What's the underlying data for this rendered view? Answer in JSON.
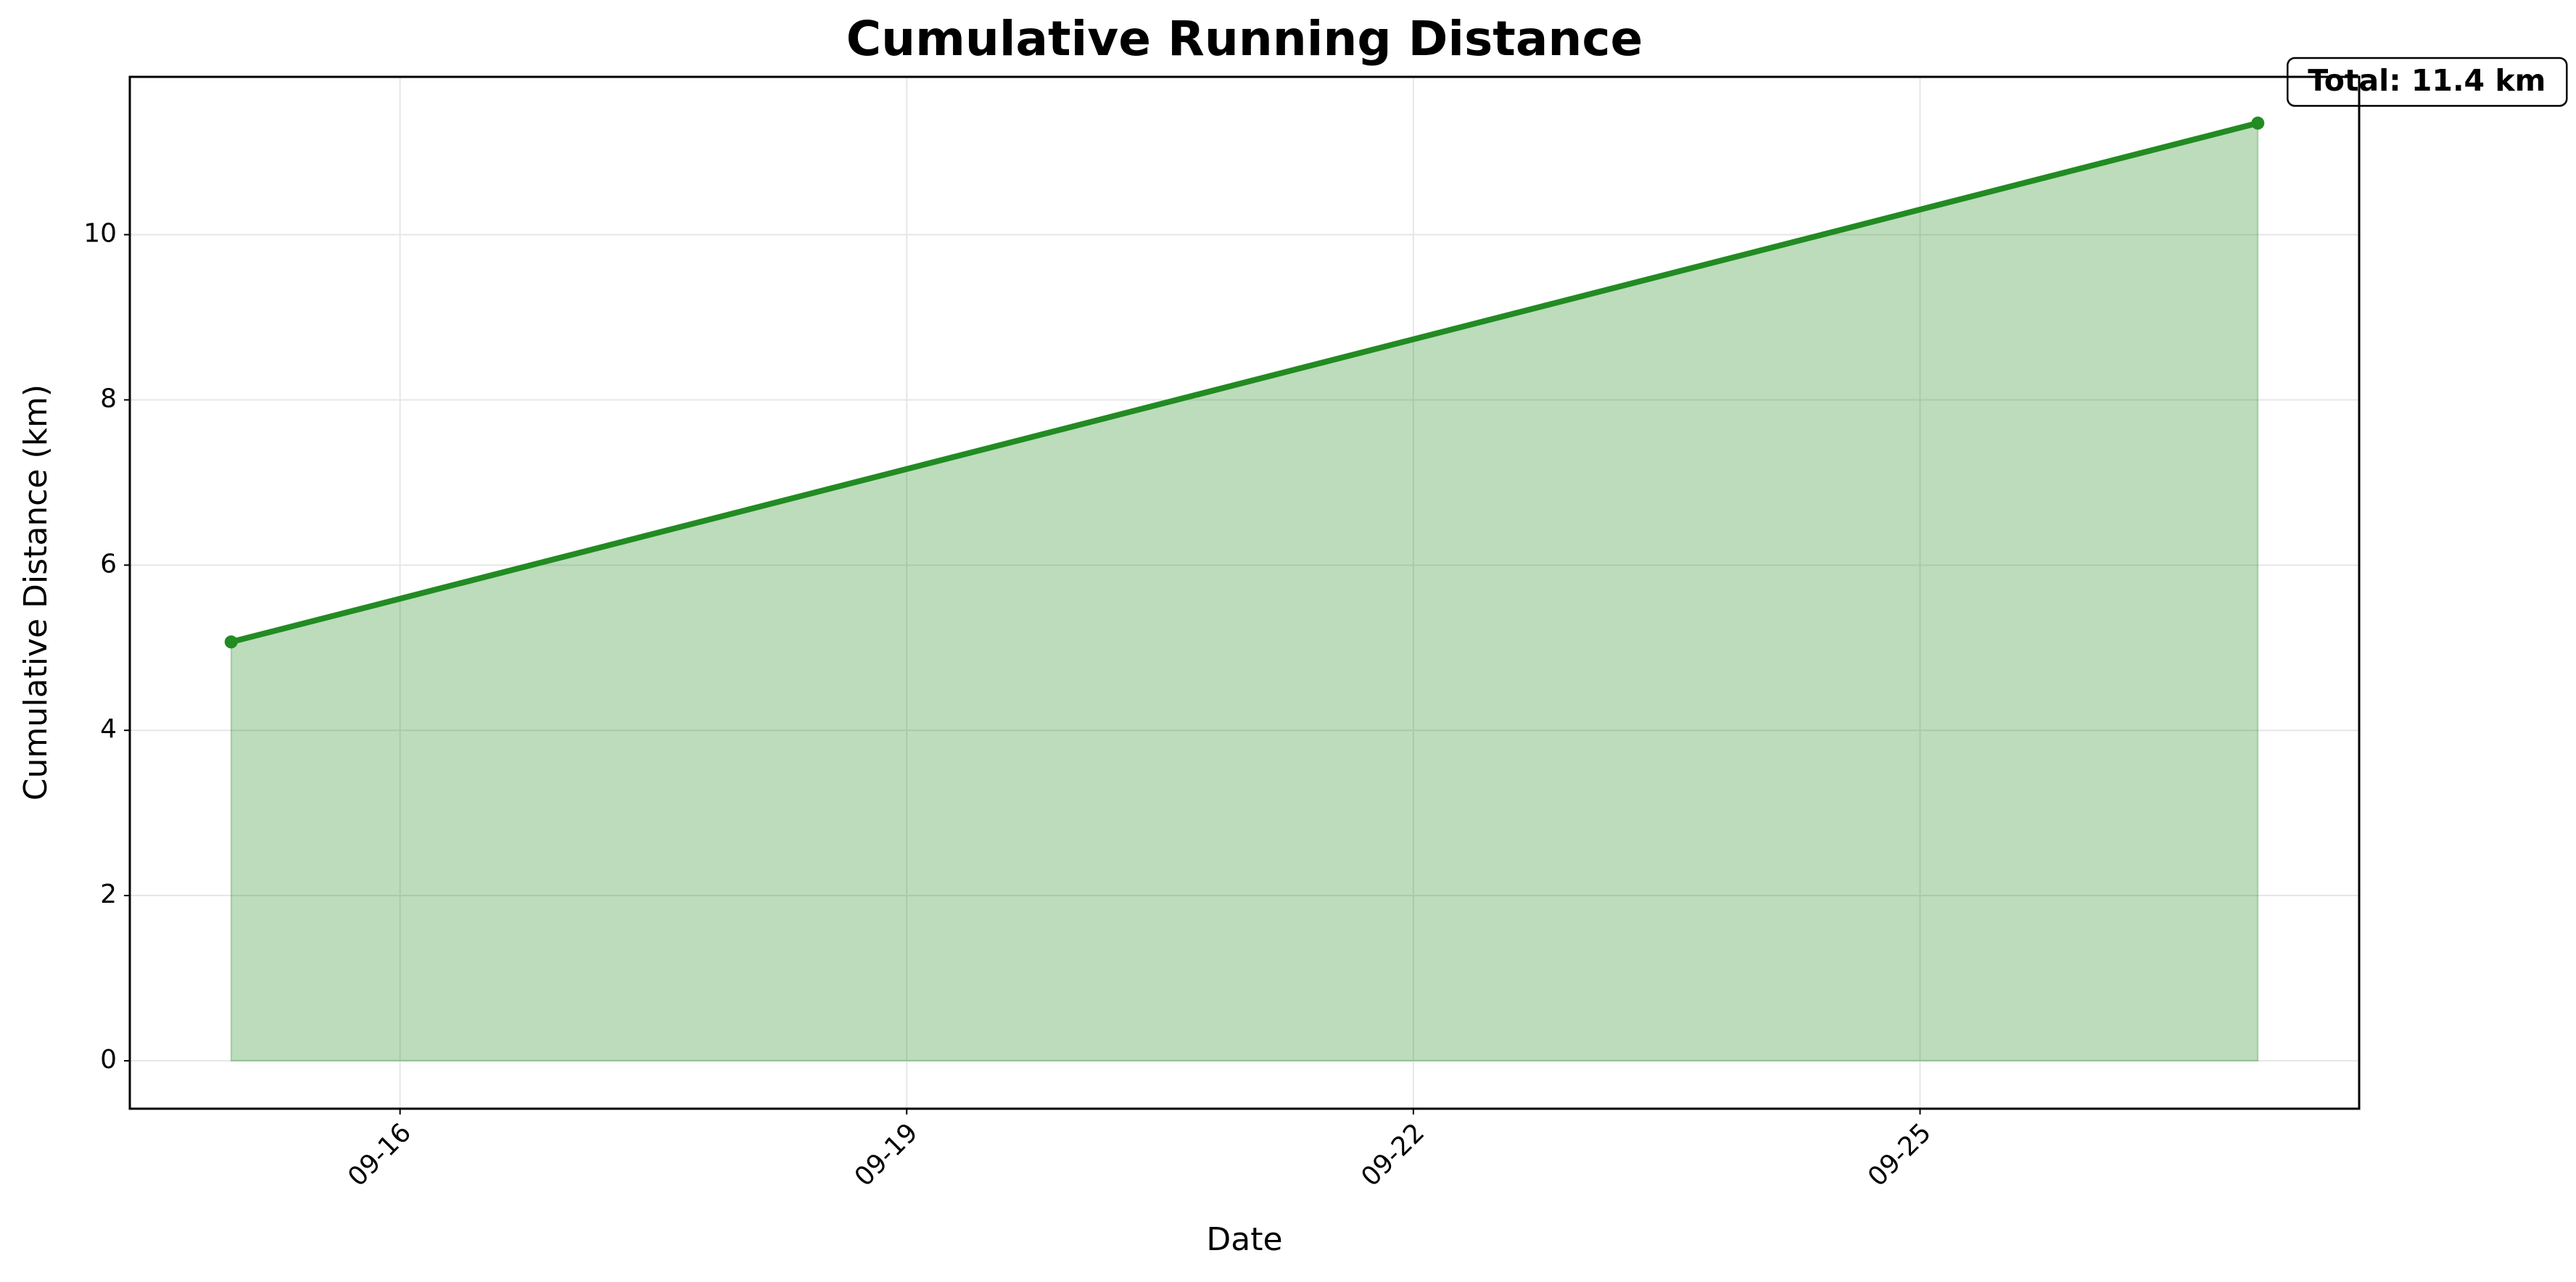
{
  "chart_data": {
    "type": "area-line",
    "title": "Cumulative Running Distance",
    "x_label": "Date",
    "y_label": "Cumulative Distance (km)",
    "x": [
      "09-15",
      "09-27"
    ],
    "series": [
      {
        "name": "Cumulative Distance",
        "color": "#228b22",
        "values": [
          5.07,
          11.35
        ]
      }
    ],
    "annotation": "Total: 11.4 km",
    "xlim": [
      "09-14",
      "09-28"
    ],
    "xticks": [
      "09-16",
      "09-19",
      "09-22",
      "09-25"
    ],
    "ylim": [
      -0.58,
      11.91
    ],
    "yticks": [
      0,
      2,
      4,
      6,
      8,
      10
    ],
    "grid": true
  }
}
